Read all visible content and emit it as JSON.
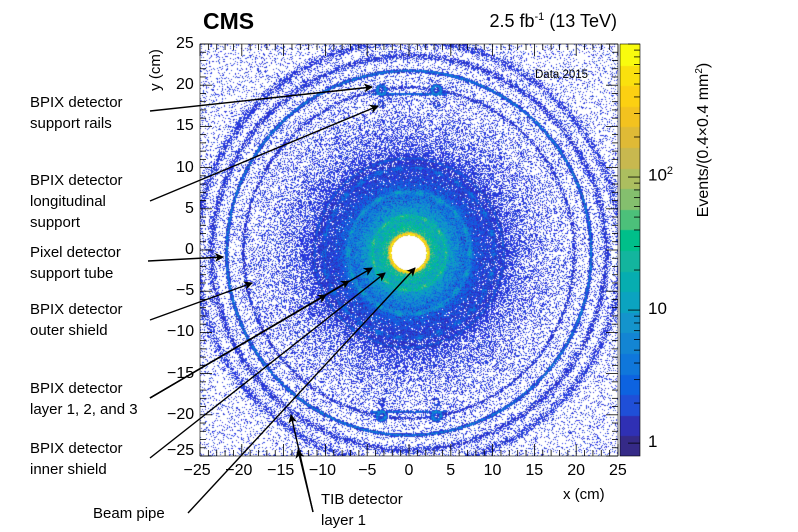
{
  "chart_data": {
    "type": "heatmap",
    "experiment": "CMS",
    "luminosity_label": {
      "value": "2.5 fb",
      "exponent": "-1",
      "energy": "(13 TeV)"
    },
    "dataset_label": "Data 2015",
    "xlabel": "x (cm)",
    "ylabel": "y (cm)",
    "zlabel": {
      "text": "Events/(0.4×0.4 mm",
      "exponent": "2",
      "close": ")"
    },
    "xlim": [
      -25,
      25
    ],
    "ylim": [
      -25,
      25
    ],
    "zscale": "log",
    "zlim": [
      0.8,
      1000
    ],
    "x_ticks": [
      "−25",
      "−20",
      "−15",
      "−10",
      "−5",
      "0",
      "5",
      "10",
      "15",
      "20",
      "25"
    ],
    "y_ticks": [
      "−25",
      "−20",
      "−15",
      "−10",
      "−5",
      "0",
      "5",
      "10",
      "15",
      "20",
      "25"
    ],
    "z_ticks": [
      {
        "base": "1",
        "exp": ""
      },
      {
        "base": "10",
        "exp": ""
      },
      {
        "base": "10",
        "exp": "2"
      }
    ],
    "colormap": [
      "#352a87",
      "#2f30b4",
      "#1f4fd8",
      "#0d63e0",
      "#0f77db",
      "#1385d3",
      "#1494cc",
      "#0ba3c0",
      "#06adb0",
      "#13b59e",
      "#00bf8a",
      "#4cc07a",
      "#84bf6e",
      "#acbe5f",
      "#c8b84f",
      "#dfba36",
      "#f3c21f",
      "#fcd012",
      "#fae00e",
      "#f9fb0e"
    ],
    "annotations": [
      {
        "lines": [
          "BPIX detector",
          "support rails"
        ]
      },
      {
        "lines": [
          "BPIX detector",
          "longitudinal",
          "support"
        ]
      },
      {
        "lines": [
          "Pixel detector",
          "support tube"
        ]
      },
      {
        "lines": [
          "BPIX detector",
          "outer shield"
        ]
      },
      {
        "lines": [
          "BPIX detector",
          "layer 1, 2, and 3"
        ]
      },
      {
        "lines": [
          "BPIX detector",
          "inner shield"
        ]
      },
      {
        "lines": [
          "Beam pipe"
        ]
      },
      {
        "lines": [
          "TIB detector",
          "layer 1"
        ]
      }
    ]
  }
}
